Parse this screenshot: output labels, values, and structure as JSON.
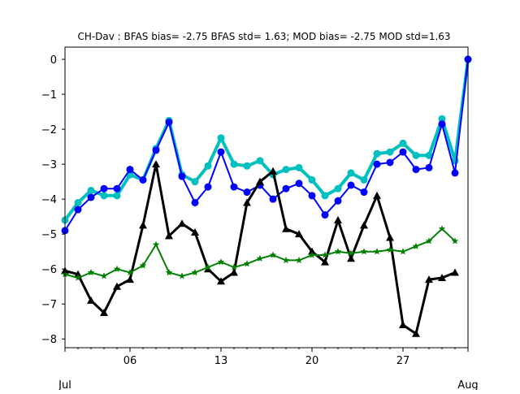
{
  "chart_data": {
    "type": "line",
    "title": "CH-Dav   : BFAS bias= -2.75 BFAS std= 1.63; MOD bias= -2.75 MOD std=1.63",
    "xlabel": "",
    "ylabel": "",
    "xlim": [
      1,
      32
    ],
    "ylim": [
      -8.25,
      0.35
    ],
    "grid": false,
    "legend": "none",
    "x": [
      1,
      2,
      3,
      4,
      5,
      6,
      7,
      8,
      9,
      10,
      11,
      12,
      13,
      14,
      15,
      16,
      17,
      18,
      19,
      20,
      21,
      22,
      23,
      24,
      25,
      26,
      27,
      28,
      29,
      30,
      31,
      32
    ],
    "x_ticks": [
      {
        "x": 6,
        "label": "06"
      },
      {
        "x": 13,
        "label": "13"
      },
      {
        "x": 20,
        "label": "20"
      },
      {
        "x": 27,
        "label": "27"
      }
    ],
    "x_month_labels": [
      {
        "x": 1,
        "label": "Jul"
      },
      {
        "x": 32,
        "label": "Aug"
      }
    ],
    "y_ticks": [
      0,
      -1,
      -2,
      -3,
      -4,
      -5,
      -6,
      -7,
      -8
    ],
    "series": [
      {
        "color": "#00bfbf",
        "marker": "circle",
        "line_width": 4,
        "values": [
          -4.6,
          -4.1,
          -3.75,
          -3.9,
          -3.9,
          -3.3,
          -3.45,
          -2.55,
          -1.75,
          -3.3,
          -3.5,
          -3.05,
          -2.25,
          -3.0,
          -3.05,
          -2.9,
          -3.3,
          -3.15,
          -3.1,
          -3.45,
          -3.9,
          -3.7,
          -3.25,
          -3.45,
          -2.7,
          -2.65,
          -2.4,
          -2.75,
          -2.75,
          -1.7,
          -2.9,
          0.0
        ]
      },
      {
        "color": "#0000ff",
        "marker": "circle",
        "line_width": 2,
        "values": [
          -4.9,
          -4.3,
          -3.95,
          -3.7,
          -3.7,
          -3.15,
          -3.45,
          -2.6,
          -1.8,
          -3.35,
          -4.1,
          -3.65,
          -2.65,
          -3.65,
          -3.8,
          -3.6,
          -4.0,
          -3.7,
          -3.55,
          -3.9,
          -4.45,
          -4.05,
          -3.6,
          -3.8,
          -3.0,
          -2.95,
          -2.65,
          -3.15,
          -3.1,
          -1.85,
          -3.25,
          0.0
        ]
      },
      {
        "color": "#000000",
        "marker": "triangle",
        "line_width": 3,
        "values": [
          -6.05,
          -6.15,
          -6.9,
          -7.25,
          -6.5,
          -6.3,
          -4.75,
          -3.0,
          -5.05,
          -4.7,
          -4.95,
          -6.0,
          -6.35,
          -6.1,
          -4.1,
          -3.5,
          -3.2,
          -4.85,
          -5.0,
          -5.5,
          -5.8,
          -4.6,
          -5.7,
          -4.75,
          -3.9,
          -5.1,
          -7.6,
          -7.85,
          -6.3,
          -6.25,
          -6.1,
          null
        ]
      },
      {
        "color": "#008000",
        "marker": "star",
        "line_width": 2,
        "values": [
          -6.15,
          -6.25,
          -6.1,
          -6.2,
          -6.0,
          -6.1,
          -5.9,
          -5.3,
          -6.1,
          -6.2,
          -6.1,
          -5.95,
          -5.8,
          -5.95,
          -5.85,
          -5.7,
          -5.6,
          -5.75,
          -5.75,
          -5.6,
          -5.6,
          -5.5,
          -5.55,
          -5.5,
          -5.5,
          -5.45,
          -5.5,
          -5.35,
          -5.2,
          -4.85,
          -5.2,
          null
        ]
      }
    ]
  }
}
